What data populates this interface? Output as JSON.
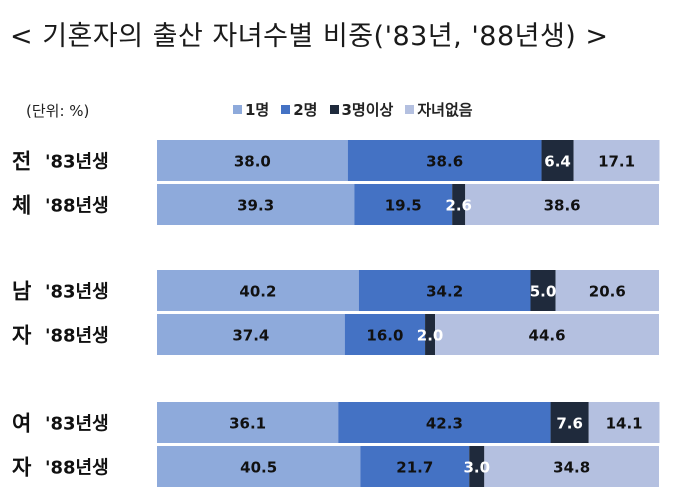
{
  "title": "< 기혼자의 출산 자녀수별 비중('83년, '88년생) >",
  "unit": "(단위: %)",
  "chart_data": {
    "type": "bar",
    "stacked": true,
    "orientation": "horizontal",
    "xlim": [
      0,
      100
    ],
    "legend": "top",
    "groups": [
      {
        "label_top": "전",
        "label_bottom": "체"
      },
      {
        "label_top": "남",
        "label_bottom": "자"
      },
      {
        "label_top": "여",
        "label_bottom": "자"
      }
    ],
    "categories": [
      "'83년생",
      "'88년생",
      "'83년생",
      "'88년생",
      "'83년생",
      "'88년생"
    ],
    "series": [
      {
        "name": "1명",
        "color": "#8eaadb",
        "text_color": "#111111",
        "values": [
          38.0,
          39.3,
          40.2,
          37.4,
          36.1,
          40.5
        ]
      },
      {
        "name": "2명",
        "color": "#4472c4",
        "text_color": "#111111",
        "values": [
          38.6,
          19.5,
          34.2,
          16.0,
          42.3,
          21.7
        ]
      },
      {
        "name": "3명이상",
        "color": "#1f2a3c",
        "text_color": "#ffffff",
        "values": [
          6.4,
          2.6,
          5.0,
          2.0,
          7.6,
          3.0
        ]
      },
      {
        "name": "자녀없음",
        "color": "#b4c0e0",
        "text_color": "#111111",
        "values": [
          17.1,
          38.6,
          20.6,
          44.6,
          14.1,
          34.8
        ]
      }
    ],
    "value_labels": [
      [
        "38.0",
        "39.3",
        "40.2",
        "37.4",
        "36.1",
        "40.5"
      ],
      [
        "38.6",
        "19.5",
        "34.2",
        "16.0",
        "42.3",
        "21.7"
      ],
      [
        "6.4",
        "2.6",
        "5.0",
        "2.0",
        "7.6",
        "3.0"
      ],
      [
        "17.1",
        "38.6",
        "20.6",
        "44.6",
        "14.1",
        "34.8"
      ]
    ]
  }
}
